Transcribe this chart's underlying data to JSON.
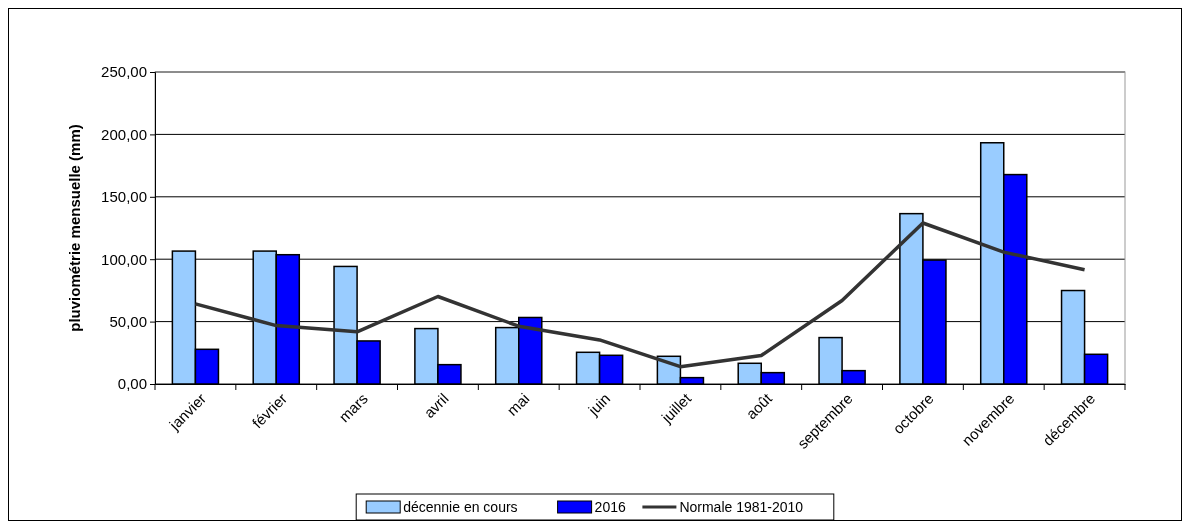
{
  "chart_data": {
    "type": "bar",
    "ylabel": "pluviométrie mensuelle (mm)",
    "categories": [
      "janvier",
      "février",
      "mars",
      "avril",
      "mai",
      "juin",
      "juillet",
      "août",
      "septembre",
      "octobre",
      "novembre",
      "décembre"
    ],
    "series": [
      {
        "name": "décennie en cours",
        "color": "#99ccff",
        "values": [
          106.5,
          106.5,
          94.2,
          44.4,
          45.2,
          25.4,
          22.2,
          16.6,
          37.2,
          136.5,
          193.3,
          74.9
        ]
      },
      {
        "name": "2016",
        "color": "#0000ff",
        "values": [
          27.8,
          103.6,
          34.5,
          15.5,
          53.3,
          23.0,
          5.1,
          9.1,
          10.7,
          99.3,
          167.8,
          23.8
        ]
      },
      {
        "name": "Normale 1981-2010",
        "type": "line",
        "color": "#333333",
        "values": [
          64.2,
          46.8,
          41.8,
          70.1,
          46.3,
          35.3,
          13.9,
          22.8,
          66.9,
          129,
          105.7,
          91.5
        ]
      }
    ],
    "ylim": [
      0,
      250
    ],
    "yticks": [
      {
        "value": 0,
        "label": "0,00"
      },
      {
        "value": 50,
        "label": "50,00"
      },
      {
        "value": 100,
        "label": "100,00"
      },
      {
        "value": 150,
        "label": "150,00"
      },
      {
        "value": 200,
        "label": "200,00"
      },
      {
        "value": 250,
        "label": "250,00"
      }
    ],
    "grid": "y",
    "legend": "bottom",
    "marker": "none"
  }
}
